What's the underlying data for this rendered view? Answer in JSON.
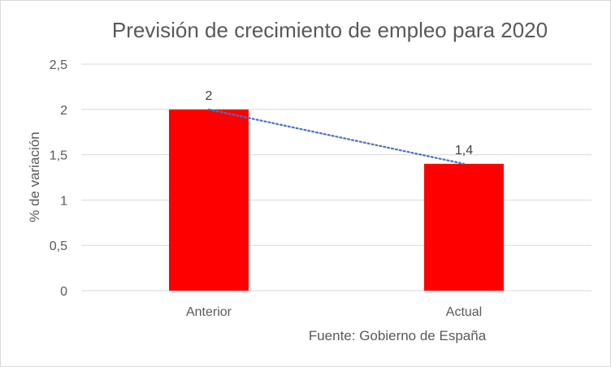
{
  "chart_data": {
    "type": "bar",
    "title": "Previsión de crecimiento de empleo para 2020",
    "ylabel": "% de variación",
    "xlabel": "",
    "categories": [
      "Anterior",
      "Actual"
    ],
    "values": [
      2,
      1.4
    ],
    "value_labels": [
      "2",
      "1,4"
    ],
    "ylim": [
      0,
      2.5
    ],
    "yticks": [
      0,
      0.5,
      1,
      1.5,
      2,
      2.5
    ],
    "ytick_labels": [
      "0",
      "0,5",
      "1",
      "1,5",
      "2",
      "2,5"
    ],
    "grid": true,
    "legend": "none",
    "trendline": {
      "style": "dotted",
      "color": "#4472c4"
    },
    "bar_color": "#ff0000",
    "annotation": "Fuente: Gobierno de España"
  }
}
